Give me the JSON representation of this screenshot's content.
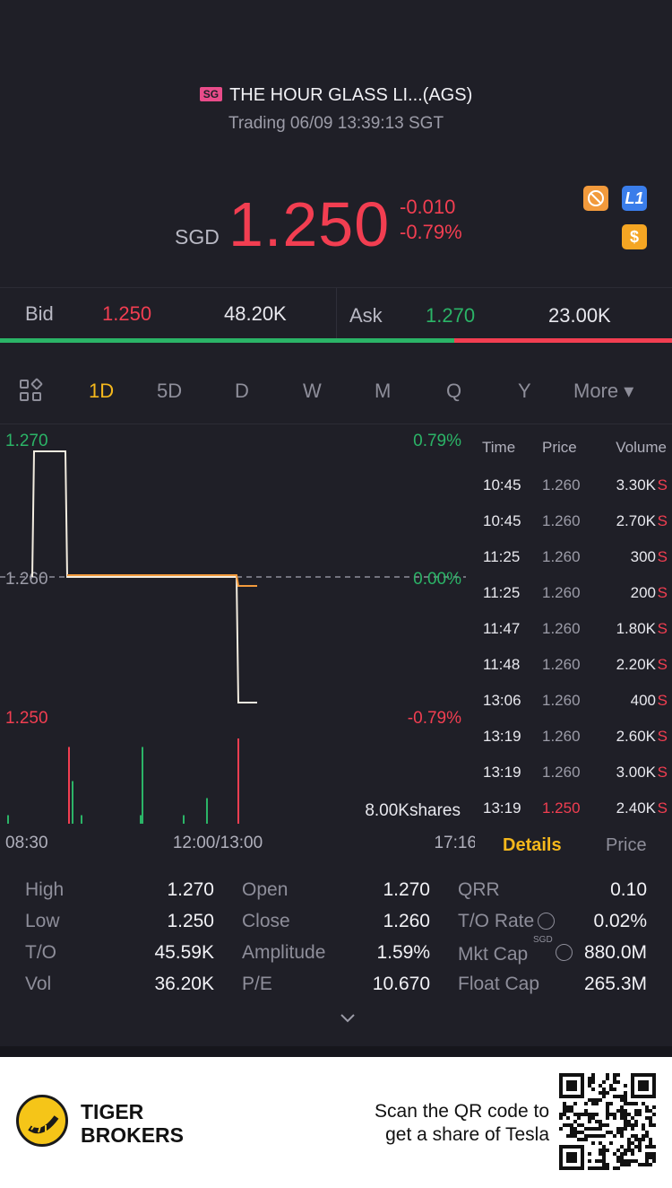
{
  "stock": {
    "market_badge": "SG",
    "name": "THE HOUR GLASS LI...(AGS)",
    "status": "Trading 06/09 13:39:13 SGT",
    "currency": "SGD",
    "price": "1.250",
    "change": "-0.010",
    "change_pct": "-0.79%"
  },
  "icons": [
    "no-short-icon",
    "level1-icon",
    "dollar-icon"
  ],
  "icon_labels": {
    "level1": "L1",
    "dollar": "$"
  },
  "quote": {
    "bid_label": "Bid",
    "bid_price": "1.250",
    "bid_size": "48.20K",
    "ask_label": "Ask",
    "ask_price": "1.270",
    "ask_size": "23.00K",
    "bid_share": 0.676
  },
  "tabs": [
    "1D",
    "5D",
    "D",
    "W",
    "M",
    "Q",
    "Y",
    "More ▾"
  ],
  "active_tab": "1D",
  "chart": {
    "high_label": "1.270",
    "high_pct": "0.79%",
    "mid_label": "1.260",
    "mid_pct": "0.00%",
    "low_label": "1.250",
    "low_pct": "-0.79%",
    "volume_label": "8.00Kshares",
    "time_start": "08:30",
    "time_mid": "12:00/13:00",
    "time_end": "17:16"
  },
  "chart_data": {
    "type": "line",
    "ylim": [
      1.25,
      1.27
    ],
    "reference_price": 1.26,
    "series": [
      {
        "values": [
          1.26,
          1.27,
          1.27,
          1.26,
          1.26,
          1.26,
          1.26,
          1.25,
          1.25
        ]
      }
    ],
    "volume": [
      0.1,
      0.9,
      0.5,
      0.1,
      0.1,
      0.9,
      0.1,
      0.3,
      1.0
    ]
  },
  "ticks": {
    "headers": {
      "time": "Time",
      "price": "Price",
      "volume": "Volume"
    },
    "rows": [
      {
        "time": "10:45",
        "price": "1.260",
        "vol": "3.30K",
        "flag": "S"
      },
      {
        "time": "10:45",
        "price": "1.260",
        "vol": "2.70K",
        "flag": "S"
      },
      {
        "time": "11:25",
        "price": "1.260",
        "vol": "300",
        "flag": "S"
      },
      {
        "time": "11:25",
        "price": "1.260",
        "vol": "200",
        "flag": "S"
      },
      {
        "time": "11:47",
        "price": "1.260",
        "vol": "1.80K",
        "flag": "S"
      },
      {
        "time": "11:48",
        "price": "1.260",
        "vol": "2.20K",
        "flag": "S"
      },
      {
        "time": "13:06",
        "price": "1.260",
        "vol": "400",
        "flag": "S"
      },
      {
        "time": "13:19",
        "price": "1.260",
        "vol": "2.60K",
        "flag": "S"
      },
      {
        "time": "13:19",
        "price": "1.260",
        "vol": "3.00K",
        "flag": "S"
      },
      {
        "time": "13:19",
        "price": "1.250",
        "vol": "2.40K",
        "flag": "S",
        "down": true
      }
    ]
  },
  "detail_tabs": {
    "details": "Details",
    "price": "Price"
  },
  "stats": {
    "high_label": "High",
    "high": "1.270",
    "low_label": "Low",
    "low": "1.250",
    "to_label": "T/O",
    "to": "45.59K",
    "vol_label": "Vol",
    "vol": "36.20K",
    "open_label": "Open",
    "open": "1.270",
    "close_label": "Close",
    "close": "1.260",
    "amplitude_label": "Amplitude",
    "amplitude": "1.59%",
    "pe_label": "P/E",
    "pe": "10.670",
    "qrr_label": "QRR",
    "qrr": "0.10",
    "to_rate_label": "T/O Rate",
    "to_rate": "0.02%",
    "mkt_cap_label": "Mkt Cap",
    "mkt_cap_currency": "SGD",
    "mkt_cap": "880.0M",
    "float_cap_label": "Float Cap",
    "float_cap": "265.3M"
  },
  "footer": {
    "brand_line1": "TIGER",
    "brand_line2": "BROKERS",
    "promo_line1": "Scan the QR code to",
    "promo_line2": "get a share of Tesla"
  },
  "colors": {
    "up": "#2bb467",
    "down": "#f23e51",
    "accent": "#f5b81c",
    "bg": "#1f1f27"
  }
}
